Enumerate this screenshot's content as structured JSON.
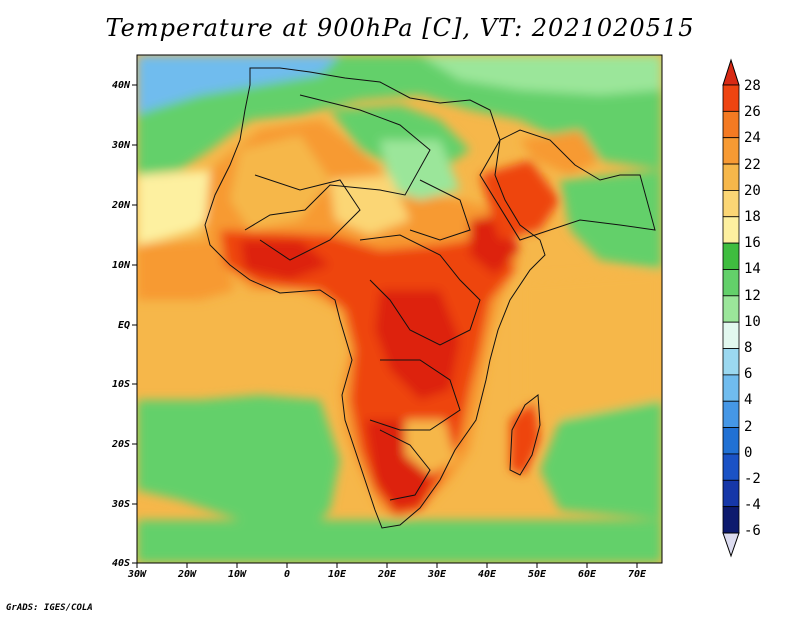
{
  "title": "Temperature at 900hPa [C], VT: 2021020515",
  "footer": "GrADS: IGES/COLA",
  "map": {
    "lon_range": [
      -30,
      75
    ],
    "lat_range": [
      -40,
      45
    ],
    "lon_ticks": [
      "30W",
      "20W",
      "10W",
      "0",
      "10E",
      "20E",
      "30E",
      "40E",
      "50E",
      "60E",
      "70E"
    ],
    "lat_ticks": [
      "40N",
      "30N",
      "20N",
      "10N",
      "EQ",
      "10S",
      "20S",
      "30S",
      "40S"
    ]
  },
  "colorbar": {
    "labels": [
      "28",
      "26",
      "24",
      "22",
      "20",
      "18",
      "16",
      "14",
      "12",
      "10",
      "8",
      "6",
      "4",
      "2",
      "0",
      "-2",
      "-4",
      "-6"
    ],
    "colors": [
      "#dd2211",
      "#ee4411",
      "#f47a22",
      "#f79a33",
      "#f6b74a",
      "#fbd675",
      "#fdf0a0",
      "#3fbd3f",
      "#63d06a",
      "#9be69a",
      "#e2f8ef",
      "#9bd8f0",
      "#70bcee",
      "#4597e6",
      "#2171d4",
      "#1a52c5",
      "#1637a8",
      "#0d1a6e"
    ],
    "top_arrow_color": "#d82a14",
    "bottom_arrow_color": "#dcdcf0"
  }
}
